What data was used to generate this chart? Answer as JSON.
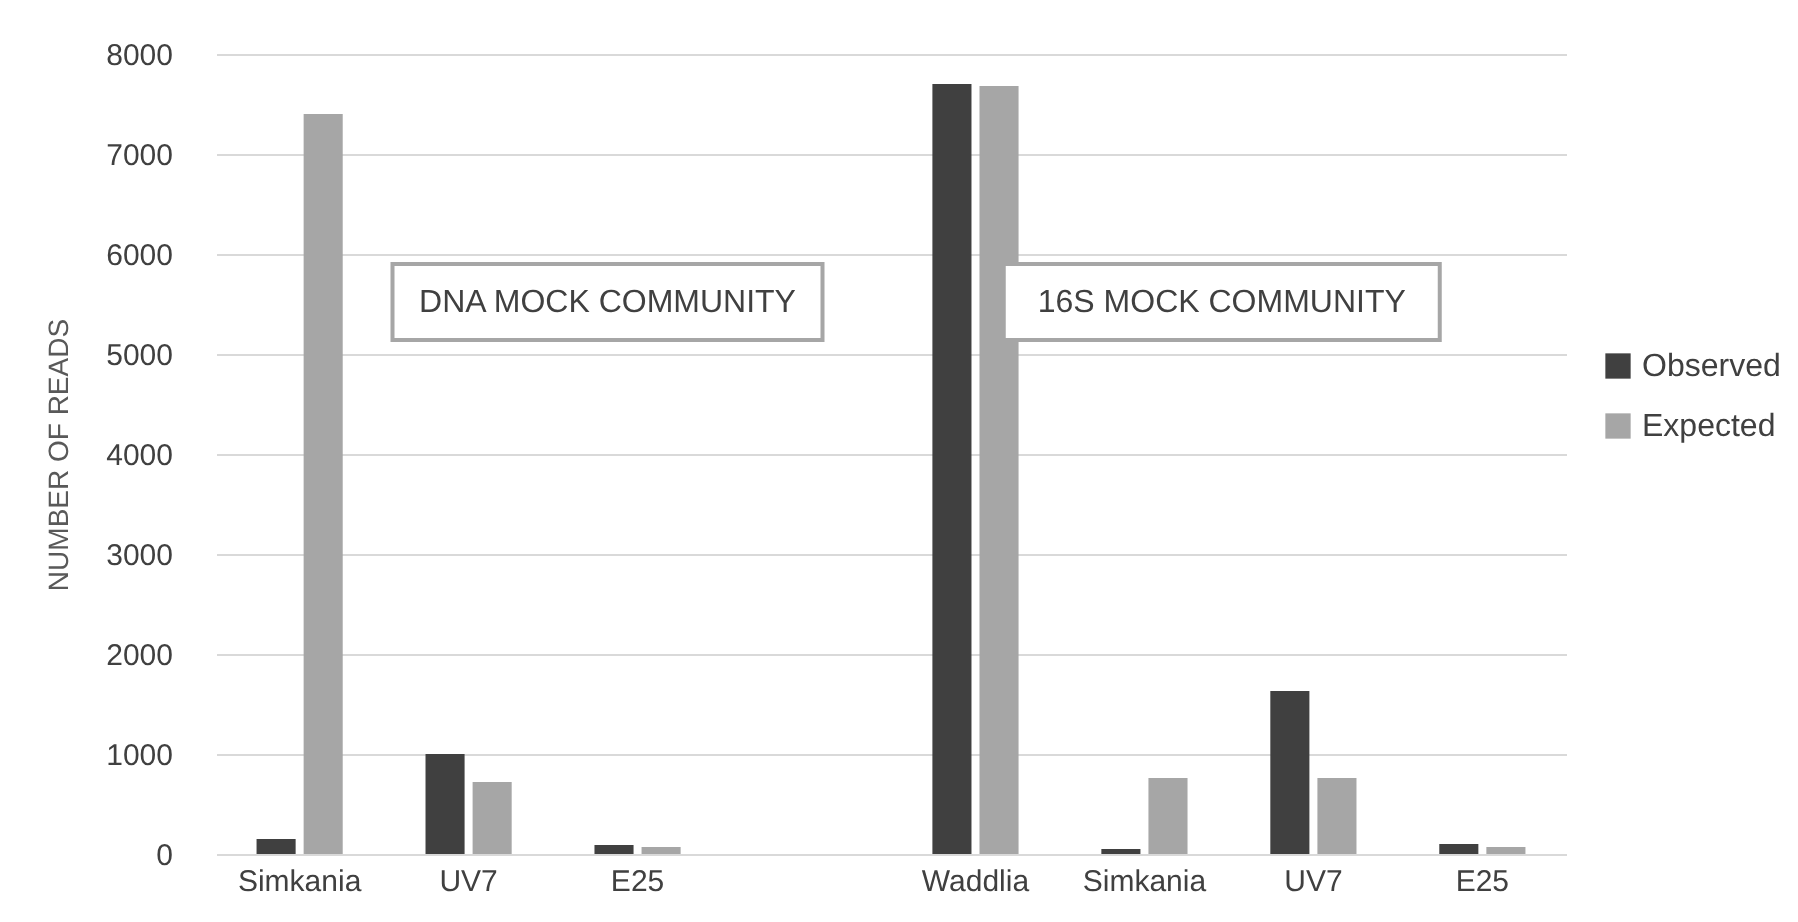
{
  "chart_data": {
    "type": "bar",
    "ylabel": "NUMBER OF READS",
    "categories": [
      "Simkania",
      "UV7",
      "E25",
      null,
      "Waddlia",
      "Simkania",
      "UV7",
      "E25"
    ],
    "series": [
      {
        "name": "Observed",
        "color": "#404040",
        "values": [
          150,
          1000,
          90,
          null,
          7700,
          50,
          1630,
          100
        ]
      },
      {
        "name": "Expected",
        "color": "#a6a6a6",
        "values": [
          7400,
          720,
          70,
          null,
          7680,
          760,
          760,
          70
        ]
      }
    ],
    "ylim": [
      0,
      8000
    ],
    "yticks": [
      0,
      1000,
      2000,
      3000,
      4000,
      5000,
      6000,
      7000,
      8000
    ],
    "grid": "y",
    "legend": "right",
    "annotations": [
      "DNA MOCK COMMUNITY",
      "16S MOCK COMMUNITY"
    ]
  }
}
